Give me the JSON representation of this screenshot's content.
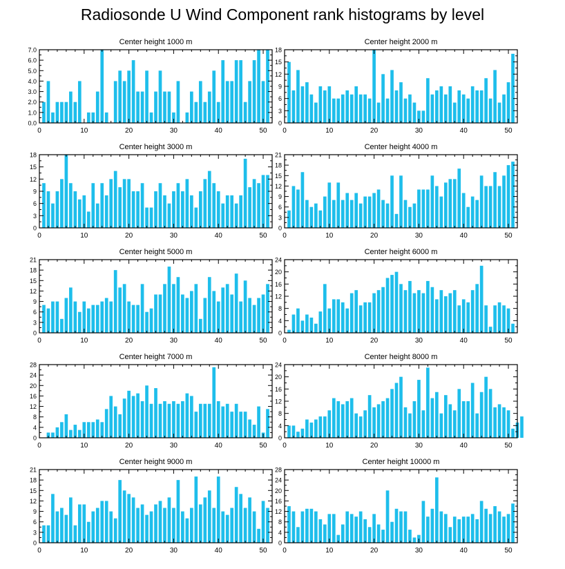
{
  "title": "Radiosonde U Wind Component rank histograms by level",
  "colors": {
    "bar": "#1ebeeb",
    "axis": "#000000",
    "text": "#000000"
  },
  "chart_data": [
    {
      "type": "bar",
      "title": "Center height 1000 m",
      "xlim": [
        0,
        52
      ],
      "xticks": [
        0,
        10,
        20,
        30,
        40,
        50
      ],
      "ylim": [
        0,
        7
      ],
      "yticks": [
        "0.0",
        "1.0",
        "2.0",
        "3.0",
        "4.0",
        "5.0",
        "6.0",
        "7.0"
      ],
      "ystep": 1,
      "values": [
        2,
        4,
        1,
        2,
        2,
        2,
        3,
        2,
        4,
        0,
        1,
        1,
        3,
        7,
        1,
        0,
        4,
        5,
        4,
        5,
        6,
        3,
        3,
        5,
        1,
        3,
        5,
        3,
        3,
        1,
        4,
        0,
        1,
        3,
        2,
        4,
        2,
        3,
        5,
        2,
        6,
        4,
        4,
        6,
        6,
        2,
        4,
        6,
        7,
        4,
        7,
        0
      ]
    },
    {
      "type": "bar",
      "title": "Center height 2000 m",
      "xlim": [
        0,
        52
      ],
      "xticks": [
        0,
        10,
        20,
        30,
        40,
        50
      ],
      "ylim": [
        0,
        18
      ],
      "yticks": [
        "0",
        "3",
        "6",
        "9",
        "12",
        "15",
        "18"
      ],
      "ystep": 3,
      "values": [
        15,
        8,
        13,
        9,
        10,
        7,
        5,
        9,
        8,
        9,
        6,
        6,
        7,
        8,
        7,
        9,
        7,
        7,
        6,
        18,
        5,
        12,
        6,
        13,
        8,
        10,
        6,
        7,
        5,
        3,
        3,
        11,
        7,
        8,
        9,
        7,
        9,
        5,
        8,
        7,
        6,
        9,
        8,
        8,
        11,
        6,
        13,
        5,
        7,
        10,
        17,
        0
      ]
    },
    {
      "type": "bar",
      "title": "Center height 3000 m",
      "xlim": [
        0,
        52
      ],
      "xticks": [
        0,
        10,
        20,
        30,
        40,
        50
      ],
      "ylim": [
        0,
        18
      ],
      "yticks": [
        "0",
        "3",
        "6",
        "9",
        "12",
        "15",
        "18"
      ],
      "ystep": 3,
      "values": [
        11,
        9,
        6,
        9,
        12,
        18,
        11,
        9,
        7,
        8,
        4,
        11,
        6,
        11,
        8,
        12,
        14,
        10,
        12,
        12,
        9,
        9,
        11,
        5,
        5,
        9,
        11,
        8,
        6,
        9,
        11,
        9,
        12,
        8,
        5,
        9,
        12,
        14,
        11,
        9,
        6,
        8,
        8,
        6,
        8,
        17,
        10,
        12,
        11,
        13,
        13,
        0
      ]
    },
    {
      "type": "bar",
      "title": "Center height 4000 m",
      "xlim": [
        0,
        52
      ],
      "xticks": [
        0,
        10,
        20,
        30,
        40,
        50
      ],
      "ylim": [
        0,
        21
      ],
      "yticks": [
        "0",
        "3",
        "6",
        "9",
        "12",
        "15",
        "18",
        "21"
      ],
      "ystep": 3,
      "values": [
        5,
        12,
        11,
        16,
        8,
        6,
        7,
        5,
        9,
        13,
        8,
        13,
        8,
        10,
        8,
        10,
        7,
        9,
        9,
        10,
        11,
        8,
        7,
        15,
        4,
        15,
        8,
        6,
        7,
        11,
        11,
        11,
        15,
        12,
        9,
        13,
        14,
        14,
        17,
        10,
        6,
        9,
        8,
        15,
        12,
        12,
        16,
        12,
        15,
        18,
        19,
        0
      ]
    },
    {
      "type": "bar",
      "title": "Center height 5000 m",
      "xlim": [
        0,
        52
      ],
      "xticks": [
        0,
        10,
        20,
        30,
        40,
        50
      ],
      "ylim": [
        0,
        21
      ],
      "yticks": [
        "0",
        "3",
        "6",
        "9",
        "12",
        "15",
        "18",
        "21"
      ],
      "ystep": 3,
      "values": [
        8,
        7,
        9,
        9,
        4,
        10,
        13,
        9,
        6,
        9,
        7,
        8,
        8,
        9,
        10,
        9,
        18,
        13,
        14,
        9,
        8,
        8,
        14,
        6,
        7,
        11,
        11,
        14,
        19,
        14,
        16,
        11,
        10,
        12,
        14,
        4,
        10,
        16,
        12,
        9,
        13,
        14,
        11,
        17,
        9,
        15,
        10,
        8,
        10,
        11,
        14,
        0
      ]
    },
    {
      "type": "bar",
      "title": "Center height 6000 m",
      "xlim": [
        0,
        52
      ],
      "xticks": [
        0,
        10,
        20,
        30,
        40,
        50
      ],
      "ylim": [
        0,
        24
      ],
      "yticks": [
        "0",
        "4",
        "8",
        "12",
        "16",
        "20",
        "24"
      ],
      "ystep": 4,
      "values": [
        1,
        6,
        8,
        4,
        6,
        5,
        3,
        7,
        16,
        8,
        11,
        11,
        10,
        8,
        13,
        14,
        9,
        10,
        10,
        13,
        14,
        15,
        18,
        19,
        20,
        16,
        14,
        17,
        13,
        14,
        13,
        17,
        15,
        11,
        14,
        12,
        13,
        14,
        9,
        11,
        10,
        14,
        16,
        22,
        9,
        2,
        9,
        10,
        9,
        8,
        3,
        0
      ]
    },
    {
      "type": "bar",
      "title": "Center height 7000 m",
      "xlim": [
        0,
        52
      ],
      "xticks": [
        0,
        10,
        20,
        30,
        40,
        50
      ],
      "ylim": [
        0,
        28
      ],
      "yticks": [
        "0",
        "4",
        "8",
        "12",
        "16",
        "20",
        "24",
        "28"
      ],
      "ystep": 4,
      "values": [
        0,
        2,
        2,
        4,
        6,
        9,
        3,
        5,
        3,
        6,
        6,
        6,
        7,
        6,
        11,
        16,
        12,
        9,
        15,
        18,
        16,
        17,
        14,
        20,
        13,
        19,
        13,
        14,
        13,
        14,
        13,
        14,
        17,
        16,
        10,
        13,
        13,
        13,
        27,
        14,
        12,
        13,
        10,
        13,
        10,
        10,
        7,
        5,
        12,
        2,
        11,
        0
      ]
    },
    {
      "type": "bar",
      "title": "Center height 8000 m",
      "xlim": [
        0,
        52
      ],
      "xticks": [
        0,
        10,
        20,
        30,
        40,
        50
      ],
      "ylim": [
        0,
        24
      ],
      "yticks": [
        "0",
        "4",
        "8",
        "12",
        "16",
        "20",
        "24"
      ],
      "ystep": 4,
      "values": [
        4,
        4,
        2,
        3,
        6,
        5,
        6,
        7,
        7,
        9,
        13,
        12,
        11,
        12,
        13,
        8,
        7,
        9,
        14,
        10,
        11,
        12,
        13,
        16,
        18,
        20,
        10,
        8,
        12,
        19,
        9,
        23,
        13,
        15,
        8,
        14,
        11,
        9,
        16,
        12,
        12,
        18,
        8,
        15,
        20,
        16,
        10,
        11,
        10,
        9,
        3,
        5,
        7,
        0
      ]
    },
    {
      "type": "bar",
      "title": "Center height 9000 m",
      "xlim": [
        0,
        52
      ],
      "xticks": [
        0,
        10,
        20,
        30,
        40,
        50
      ],
      "ylim": [
        0,
        21
      ],
      "yticks": [
        "0",
        "3",
        "6",
        "9",
        "12",
        "15",
        "18",
        "21"
      ],
      "ystep": 3,
      "values": [
        5,
        5,
        14,
        9,
        10,
        8,
        13,
        5,
        11,
        11,
        6,
        9,
        10,
        12,
        12,
        9,
        7,
        18,
        15,
        14,
        13,
        10,
        11,
        8,
        9,
        11,
        12,
        10,
        13,
        10,
        18,
        9,
        7,
        10,
        19,
        11,
        13,
        15,
        10,
        19,
        9,
        8,
        10,
        16,
        14,
        10,
        13,
        9,
        4,
        12,
        10,
        0
      ]
    },
    {
      "type": "bar",
      "title": "Center height 10000 m",
      "xlim": [
        0,
        52
      ],
      "xticks": [
        0,
        10,
        20,
        30,
        40,
        50
      ],
      "ylim": [
        0,
        28
      ],
      "yticks": [
        "0",
        "4",
        "8",
        "12",
        "16",
        "20",
        "24",
        "28"
      ],
      "ystep": 4,
      "values": [
        14,
        12,
        6,
        12,
        13,
        13,
        12,
        9,
        7,
        11,
        11,
        3,
        7,
        12,
        11,
        10,
        12,
        9,
        6,
        11,
        7,
        5,
        20,
        8,
        13,
        12,
        12,
        5,
        2,
        3,
        16,
        10,
        13,
        25,
        12,
        11,
        6,
        10,
        9,
        10,
        10,
        11,
        9,
        16,
        13,
        11,
        14,
        12,
        10,
        11,
        15,
        0
      ]
    }
  ]
}
